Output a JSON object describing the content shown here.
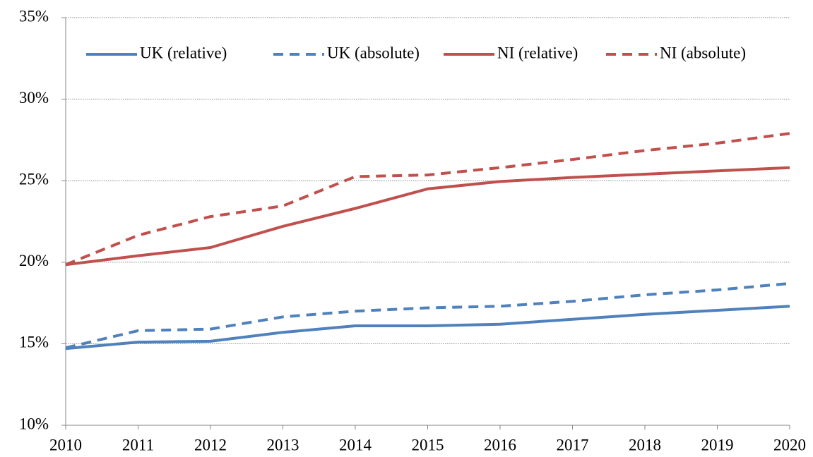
{
  "chart_data": {
    "type": "line",
    "x": [
      2010,
      2011,
      2012,
      2013,
      2014,
      2015,
      2016,
      2017,
      2018,
      2019,
      2020
    ],
    "xlim": [
      2010,
      2020
    ],
    "xticks": [
      2010,
      2011,
      2012,
      2013,
      2014,
      2015,
      2016,
      2017,
      2018,
      2019,
      2020
    ],
    "ylim": [
      10,
      35
    ],
    "yticks": [
      {
        "value": 10,
        "label": "10%"
      },
      {
        "value": 15,
        "label": "15%"
      },
      {
        "value": 20,
        "label": "20%"
      },
      {
        "value": 25,
        "label": "25%"
      },
      {
        "value": 30,
        "label": "30%"
      },
      {
        "value": 35,
        "label": "35%"
      }
    ],
    "grid": true,
    "legend": "top",
    "series": [
      {
        "name": "UK (relative)",
        "color": "#4f81bd",
        "dashed": false,
        "values": [
          14.7,
          15.1,
          15.15,
          15.7,
          16.1,
          16.1,
          16.2,
          16.5,
          16.8,
          17.05,
          17.3
        ]
      },
      {
        "name": "UK (absolute)",
        "color": "#4f81bd",
        "dashed": true,
        "values": [
          14.75,
          15.8,
          15.9,
          16.65,
          17.0,
          17.2,
          17.3,
          17.6,
          18.0,
          18.3,
          18.7
        ]
      },
      {
        "name": "NI (relative)",
        "color": "#c0504d",
        "dashed": false,
        "values": [
          19.85,
          20.4,
          20.9,
          22.2,
          23.3,
          24.5,
          24.95,
          25.2,
          25.4,
          25.6,
          25.8
        ]
      },
      {
        "name": "NI (absolute)",
        "color": "#c0504d",
        "dashed": true,
        "values": [
          19.85,
          21.65,
          22.8,
          23.45,
          25.25,
          25.35,
          25.8,
          26.3,
          26.85,
          27.3,
          27.9
        ]
      }
    ]
  }
}
